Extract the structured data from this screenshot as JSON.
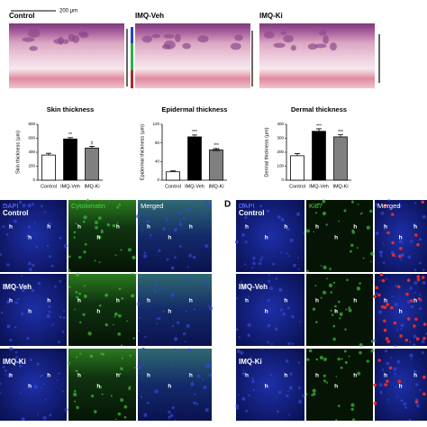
{
  "top_panel": {
    "scale_bar": "200 μm",
    "labels": [
      "Control",
      "IMQ-Veh",
      "IMQ-Ki"
    ]
  },
  "chart_data": [
    {
      "type": "bar",
      "title": "Skin thickness",
      "y_label": "Skin thickness (μm)",
      "categories": [
        "Control",
        "IMQ-Veh",
        "IMQ-Ki"
      ],
      "values": [
        360,
        590,
        460
      ],
      "errors": [
        25,
        20,
        25
      ],
      "colors": [
        "#ffffff",
        "#000000",
        "#808080"
      ],
      "annotations": [
        null,
        [
          "**"
        ],
        [
          "#"
        ]
      ],
      "ylim": [
        0,
        800
      ],
      "yticks": [
        0,
        200,
        400,
        600,
        800
      ]
    },
    {
      "type": "bar",
      "title": "Epidermal thickness",
      "y_label": "Epidermal thickness (μm)",
      "categories": [
        "Control",
        "IMQ-Veh",
        "IMQ-Ki"
      ],
      "values": [
        18,
        93,
        65
      ],
      "errors": [
        2,
        4,
        3
      ],
      "colors": [
        "#ffffff",
        "#000000",
        "#808080"
      ],
      "annotations": [
        null,
        [
          "***"
        ],
        [
          "***",
          "###"
        ]
      ],
      "ylim": [
        0,
        120
      ],
      "yticks": [
        0,
        40,
        80,
        120
      ]
    },
    {
      "type": "bar",
      "title": "Dermal thickness",
      "y_label": "Dermal thickness (μm)",
      "categories": [
        "Control",
        "IMQ-Veh",
        "IMQ-Ki"
      ],
      "values": [
        175,
        350,
        310
      ],
      "errors": [
        15,
        18,
        15
      ],
      "colors": [
        "#ffffff",
        "#000000",
        "#808080"
      ],
      "annotations": [
        null,
        [
          "***"
        ],
        [
          "***"
        ]
      ],
      "ylim": [
        0,
        400
      ],
      "yticks": [
        0,
        100,
        200,
        300,
        400
      ]
    }
  ],
  "panel_c": {
    "columns": [
      "DAPI",
      "Cytokeratin",
      "Merged"
    ],
    "rows": [
      "Control",
      "IMQ-Veh",
      "IMQ-Ki"
    ]
  },
  "panel_d": {
    "label": "D",
    "columns": [
      "DAPI",
      "Ki67",
      "Merged"
    ],
    "rows": [
      "Control",
      "IMQ-Veh",
      "IMQ-Ki"
    ]
  },
  "hair_follicle_label": "h"
}
